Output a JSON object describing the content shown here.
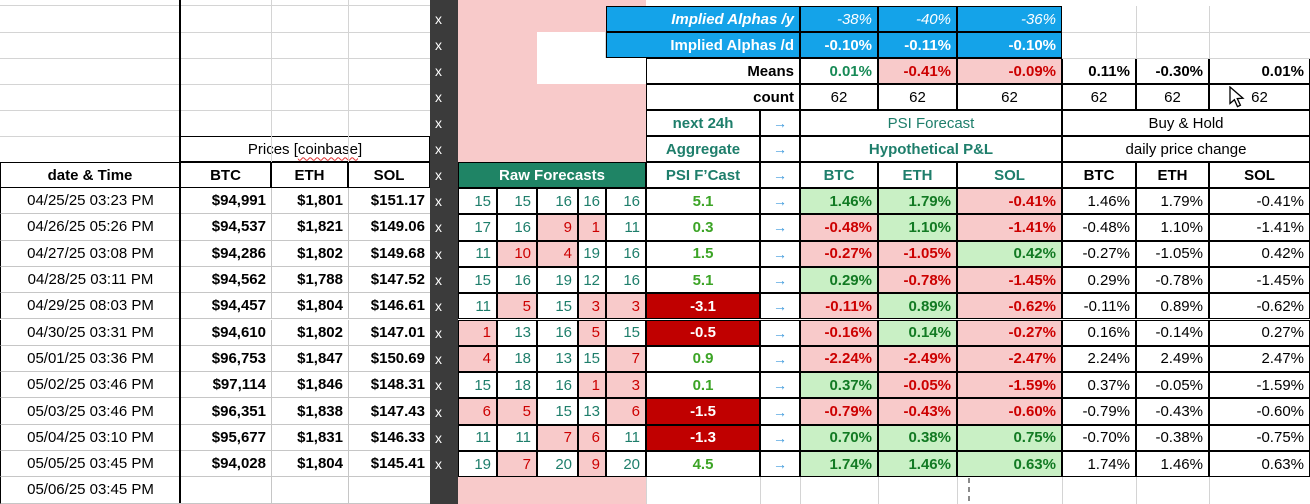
{
  "colors": {
    "accent_blue": "#14a3e9",
    "teal_header_text": "#1e7e6b",
    "raw_header_green_bg": "#1f8465",
    "psi_value_green": "#3ca426",
    "pnl_green_text": "#127a23",
    "pnl_green_bg": "#c9f0c5",
    "negative_red_text": "#cc0000",
    "negative_dark_red_bg": "#c00000",
    "pink_bg": "#f8caca",
    "dark_marker_column_bg": "#3b3b3b"
  },
  "top": {
    "implied_alphas_y_label": "Implied Alphas /y",
    "implied_alphas_y": [
      "-38%",
      "-40%",
      "-36%"
    ],
    "implied_alphas_d_label": "Implied Alphas /d",
    "implied_alphas_d": [
      "-0.10%",
      "-0.11%",
      "-0.10%"
    ],
    "means_label": "Means",
    "means_psi": [
      "0.01%",
      "-0.41%",
      "-0.09%"
    ],
    "means_bh": [
      "0.11%",
      "-0.30%",
      "0.01%"
    ],
    "count_label": "count",
    "counts": [
      "62",
      "62",
      "62",
      "62",
      "62",
      "62"
    ]
  },
  "headers": {
    "prices_group_prefix": "Prices [",
    "prices_group_word": "coinbase",
    "prices_group_suffix": "]",
    "date_col": "date & Time",
    "price_cols": [
      "BTC",
      "ETH",
      "SOL"
    ],
    "x_marker": "x",
    "raw_forecasts": "Raw Forecasts",
    "next_24h": "next 24h",
    "aggregate": "Aggregate",
    "psi_fcast": "PSI F’Cast",
    "arrow": "→",
    "psi_forecast_group": "PSI Forecast",
    "hyp_pnl_group": "Hypothetical P&L",
    "pnl_cols": [
      "BTC",
      "ETH",
      "SOL"
    ],
    "buy_hold_group": "Buy & Hold",
    "daily_change_group": "daily price change",
    "bh_cols": [
      "BTC",
      "ETH",
      "SOL"
    ]
  },
  "rows": [
    {
      "date": "04/25/25 03:23 PM",
      "btc": "$94,991",
      "eth": "$1,801",
      "sol": "$151.17",
      "raw": [
        {
          "v": "15",
          "neg": false
        },
        {
          "v": "15",
          "neg": false
        },
        {
          "v": "16",
          "neg": false
        },
        {
          "v": "16",
          "neg": false
        },
        {
          "v": "16",
          "neg": false
        }
      ],
      "psi": {
        "v": "5.1",
        "neg": false
      },
      "pnl": [
        {
          "v": "1.46%",
          "pos": true
        },
        {
          "v": "1.79%",
          "pos": true
        },
        {
          "v": "-0.41%",
          "pos": false
        }
      ],
      "daily": [
        "1.46%",
        "1.79%",
        "-0.41%"
      ]
    },
    {
      "date": "04/26/25 05:26 PM",
      "btc": "$94,537",
      "eth": "$1,821",
      "sol": "$149.06",
      "raw": [
        {
          "v": "17",
          "neg": false
        },
        {
          "v": "16",
          "neg": false
        },
        {
          "v": "9",
          "neg": true
        },
        {
          "v": "1",
          "neg": true
        },
        {
          "v": "11",
          "neg": false
        }
      ],
      "psi": {
        "v": "0.3",
        "neg": false
      },
      "pnl": [
        {
          "v": "-0.48%",
          "pos": false
        },
        {
          "v": "1.10%",
          "pos": true
        },
        {
          "v": "-1.41%",
          "pos": false
        }
      ],
      "daily": [
        "-0.48%",
        "1.10%",
        "-1.41%"
      ]
    },
    {
      "date": "04/27/25 03:08 PM",
      "btc": "$94,286",
      "eth": "$1,802",
      "sol": "$149.68",
      "raw": [
        {
          "v": "11",
          "neg": false
        },
        {
          "v": "10",
          "neg": true
        },
        {
          "v": "4",
          "neg": true
        },
        {
          "v": "19",
          "neg": false
        },
        {
          "v": "16",
          "neg": false
        }
      ],
      "psi": {
        "v": "1.5",
        "neg": false
      },
      "pnl": [
        {
          "v": "-0.27%",
          "pos": false
        },
        {
          "v": "-1.05%",
          "pos": false
        },
        {
          "v": "0.42%",
          "pos": true
        }
      ],
      "daily": [
        "-0.27%",
        "-1.05%",
        "0.42%"
      ]
    },
    {
      "date": "04/28/25 03:11 PM",
      "btc": "$94,562",
      "eth": "$1,788",
      "sol": "$147.52",
      "raw": [
        {
          "v": "15",
          "neg": false
        },
        {
          "v": "16",
          "neg": false
        },
        {
          "v": "19",
          "neg": false
        },
        {
          "v": "12",
          "neg": false
        },
        {
          "v": "16",
          "neg": false
        }
      ],
      "psi": {
        "v": "5.1",
        "neg": false
      },
      "pnl": [
        {
          "v": "0.29%",
          "pos": true
        },
        {
          "v": "-0.78%",
          "pos": false
        },
        {
          "v": "-1.45%",
          "pos": false
        }
      ],
      "daily": [
        "0.29%",
        "-0.78%",
        "-1.45%"
      ]
    },
    {
      "date": "04/29/25 08:03 PM",
      "btc": "$94,457",
      "eth": "$1,804",
      "sol": "$146.61",
      "raw": [
        {
          "v": "11",
          "neg": false
        },
        {
          "v": "5",
          "neg": true
        },
        {
          "v": "15",
          "neg": false
        },
        {
          "v": "3",
          "neg": true
        },
        {
          "v": "3",
          "neg": true
        }
      ],
      "psi": {
        "v": "-3.1",
        "neg": true
      },
      "pnl": [
        {
          "v": "-0.11%",
          "pos": false
        },
        {
          "v": "0.89%",
          "pos": true
        },
        {
          "v": "-0.62%",
          "pos": false
        }
      ],
      "daily": [
        "-0.11%",
        "0.89%",
        "-0.62%"
      ]
    },
    {
      "date": "04/30/25 03:31 PM",
      "btc": "$94,610",
      "eth": "$1,802",
      "sol": "$147.01",
      "raw": [
        {
          "v": "1",
          "neg": true
        },
        {
          "v": "13",
          "neg": false
        },
        {
          "v": "16",
          "neg": false
        },
        {
          "v": "5",
          "neg": true
        },
        {
          "v": "15",
          "neg": false
        }
      ],
      "psi": {
        "v": "-0.5",
        "neg": true
      },
      "pnl": [
        {
          "v": "-0.16%",
          "pos": false
        },
        {
          "v": "0.14%",
          "pos": true
        },
        {
          "v": "-0.27%",
          "pos": false
        }
      ],
      "daily": [
        "0.16%",
        "-0.14%",
        "0.27%"
      ]
    },
    {
      "date": "05/01/25 03:36 PM",
      "btc": "$96,753",
      "eth": "$1,847",
      "sol": "$150.69",
      "raw": [
        {
          "v": "4",
          "neg": true
        },
        {
          "v": "18",
          "neg": false
        },
        {
          "v": "13",
          "neg": false
        },
        {
          "v": "15",
          "neg": false
        },
        {
          "v": "7",
          "neg": true
        }
      ],
      "psi": {
        "v": "0.9",
        "neg": false
      },
      "pnl": [
        {
          "v": "-2.24%",
          "pos": false
        },
        {
          "v": "-2.49%",
          "pos": false
        },
        {
          "v": "-2.47%",
          "pos": false
        }
      ],
      "daily": [
        "2.24%",
        "2.49%",
        "2.47%"
      ]
    },
    {
      "date": "05/02/25 03:46 PM",
      "btc": "$97,114",
      "eth": "$1,846",
      "sol": "$148.31",
      "raw": [
        {
          "v": "15",
          "neg": false
        },
        {
          "v": "18",
          "neg": false
        },
        {
          "v": "16",
          "neg": false
        },
        {
          "v": "1",
          "neg": true
        },
        {
          "v": "3",
          "neg": true
        }
      ],
      "psi": {
        "v": "0.1",
        "neg": false
      },
      "pnl": [
        {
          "v": "0.37%",
          "pos": true
        },
        {
          "v": "-0.05%",
          "pos": false
        },
        {
          "v": "-1.59%",
          "pos": false
        }
      ],
      "daily": [
        "0.37%",
        "-0.05%",
        "-1.59%"
      ]
    },
    {
      "date": "05/03/25 03:46 PM",
      "btc": "$96,351",
      "eth": "$1,838",
      "sol": "$147.43",
      "raw": [
        {
          "v": "6",
          "neg": true
        },
        {
          "v": "5",
          "neg": true
        },
        {
          "v": "15",
          "neg": false
        },
        {
          "v": "13",
          "neg": false
        },
        {
          "v": "6",
          "neg": true
        }
      ],
      "psi": {
        "v": "-1.5",
        "neg": true
      },
      "pnl": [
        {
          "v": "-0.79%",
          "pos": false
        },
        {
          "v": "-0.43%",
          "pos": false
        },
        {
          "v": "-0.60%",
          "pos": false
        }
      ],
      "daily": [
        "-0.79%",
        "-0.43%",
        "-0.60%"
      ]
    },
    {
      "date": "05/04/25 03:10 PM",
      "btc": "$95,677",
      "eth": "$1,831",
      "sol": "$146.33",
      "raw": [
        {
          "v": "11",
          "neg": false
        },
        {
          "v": "11",
          "neg": false
        },
        {
          "v": "7",
          "neg": true
        },
        {
          "v": "6",
          "neg": true
        },
        {
          "v": "11",
          "neg": false
        }
      ],
      "psi": {
        "v": "-1.3",
        "neg": true
      },
      "pnl": [
        {
          "v": "0.70%",
          "pos": true
        },
        {
          "v": "0.38%",
          "pos": true
        },
        {
          "v": "0.75%",
          "pos": true
        }
      ],
      "daily": [
        "-0.70%",
        "-0.38%",
        "-0.75%"
      ]
    },
    {
      "date": "05/05/25 03:45 PM",
      "btc": "$94,028",
      "eth": "$1,804",
      "sol": "$145.41",
      "raw": [
        {
          "v": "19",
          "neg": false
        },
        {
          "v": "7",
          "neg": true
        },
        {
          "v": "20",
          "neg": false
        },
        {
          "v": "9",
          "neg": true
        },
        {
          "v": "20",
          "neg": false
        }
      ],
      "psi": {
        "v": "4.5",
        "neg": false
      },
      "pnl": [
        {
          "v": "1.74%",
          "pos": true
        },
        {
          "v": "1.46%",
          "pos": true
        },
        {
          "v": "0.63%",
          "pos": true
        }
      ],
      "daily": [
        "1.74%",
        "1.46%",
        "0.63%"
      ]
    },
    {
      "date": "05/06/25 03:45 PM",
      "btc": "",
      "eth": "",
      "sol": "",
      "raw": null,
      "psi": null,
      "pnl": null,
      "daily": null
    }
  ]
}
